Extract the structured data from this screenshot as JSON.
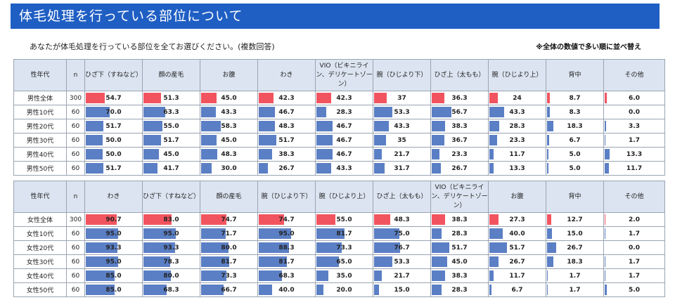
{
  "title": "体毛処理を行っている部位について",
  "question": "あなたが体毛処理を行っている部位を全てお選びください。(複数回答)",
  "note": "※全体の数値で多い順に並べ替え",
  "colors": {
    "header_bg": "#1f5fc4",
    "bar": "#5b7fc5",
    "bar_highlight": "#f2545f",
    "table_header": "#dbe4f0"
  },
  "male_table": {
    "headers": [
      "性年代",
      "n",
      "ひざ下（すねなど）",
      "顔の産毛",
      "お腹",
      "わき",
      "VIO（ビキニライン、デリケートゾーン）",
      "腕（ひじより下）",
      "ひざ上（太もも）",
      "腕（ひじより上）",
      "背中",
      "その他"
    ],
    "rows": [
      {
        "label": "男性全体",
        "n": "300",
        "values": [
          "54.7",
          "51.3",
          "45.0",
          "42.3",
          "42.3",
          "37",
          "36.3",
          "24",
          "8.7",
          "6.0"
        ]
      },
      {
        "label": "男性10代",
        "n": "60",
        "values": [
          "70.0",
          "63.3",
          "43.3",
          "46.7",
          "28.3",
          "53.3",
          "56.7",
          "43.3",
          "8.3",
          "0.0"
        ]
      },
      {
        "label": "男性20代",
        "n": "60",
        "values": [
          "51.7",
          "55.0",
          "58.3",
          "48.3",
          "46.7",
          "43.3",
          "38.3",
          "28.3",
          "18.3",
          "3.3"
        ]
      },
      {
        "label": "男性30代",
        "n": "60",
        "values": [
          "50.0",
          "51.7",
          "45.0",
          "51.7",
          "46.7",
          "35",
          "36.7",
          "23.3",
          "6.7",
          "1.7"
        ]
      },
      {
        "label": "男性40代",
        "n": "60",
        "values": [
          "50.0",
          "45.0",
          "48.3",
          "38.3",
          "46.7",
          "21.7",
          "23.3",
          "11.7",
          "5.0",
          "13.3"
        ]
      },
      {
        "label": "男性50代",
        "n": "60",
        "values": [
          "51.7",
          "41.7",
          "30.0",
          "26.7",
          "43.3",
          "31.7",
          "26.7",
          "13.3",
          "5.0",
          "11.7"
        ]
      }
    ]
  },
  "female_table": {
    "headers": [
      "性年代",
      "n",
      "わき",
      "ひざ下（すねなど）",
      "顔の産毛",
      "腕（ひじより下）",
      "腕（ひじより上）",
      "ひざ上（太もも）",
      "VIO（ビキニライン、デリケートゾーン）",
      "お腹",
      "背中",
      "その他"
    ],
    "rows": [
      {
        "label": "女性全体",
        "n": "300",
        "values": [
          "90.7",
          "83.0",
          "74.7",
          "74.7",
          "55.0",
          "48.3",
          "38.3",
          "27.3",
          "12.7",
          "2.0"
        ]
      },
      {
        "label": "女性10代",
        "n": "60",
        "values": [
          "95.0",
          "95.0",
          "71.7",
          "95.0",
          "81.7",
          "75.0",
          "28.3",
          "40.0",
          "15.0",
          "1.7"
        ]
      },
      {
        "label": "女性20代",
        "n": "60",
        "values": [
          "93.3",
          "93.3",
          "80.0",
          "88.3",
          "73.3",
          "76.7",
          "51.7",
          "51.7",
          "26.7",
          "0.0"
        ]
      },
      {
        "label": "女性30代",
        "n": "60",
        "values": [
          "95.0",
          "78.3",
          "81.7",
          "81.7",
          "65.0",
          "53.3",
          "45.0",
          "26.7",
          "18.3",
          "1.7"
        ]
      },
      {
        "label": "女性40代",
        "n": "60",
        "values": [
          "85.0",
          "80.0",
          "73.3",
          "68.3",
          "35.0",
          "21.7",
          "38.3",
          "11.7",
          "1.7",
          "1.7"
        ]
      },
      {
        "label": "女性50代",
        "n": "60",
        "values": [
          "85.0",
          "68.3",
          "66.7",
          "40.0",
          "20.0",
          "15.0",
          "28.3",
          "6.7",
          "1.7",
          "5.0"
        ]
      }
    ]
  }
}
